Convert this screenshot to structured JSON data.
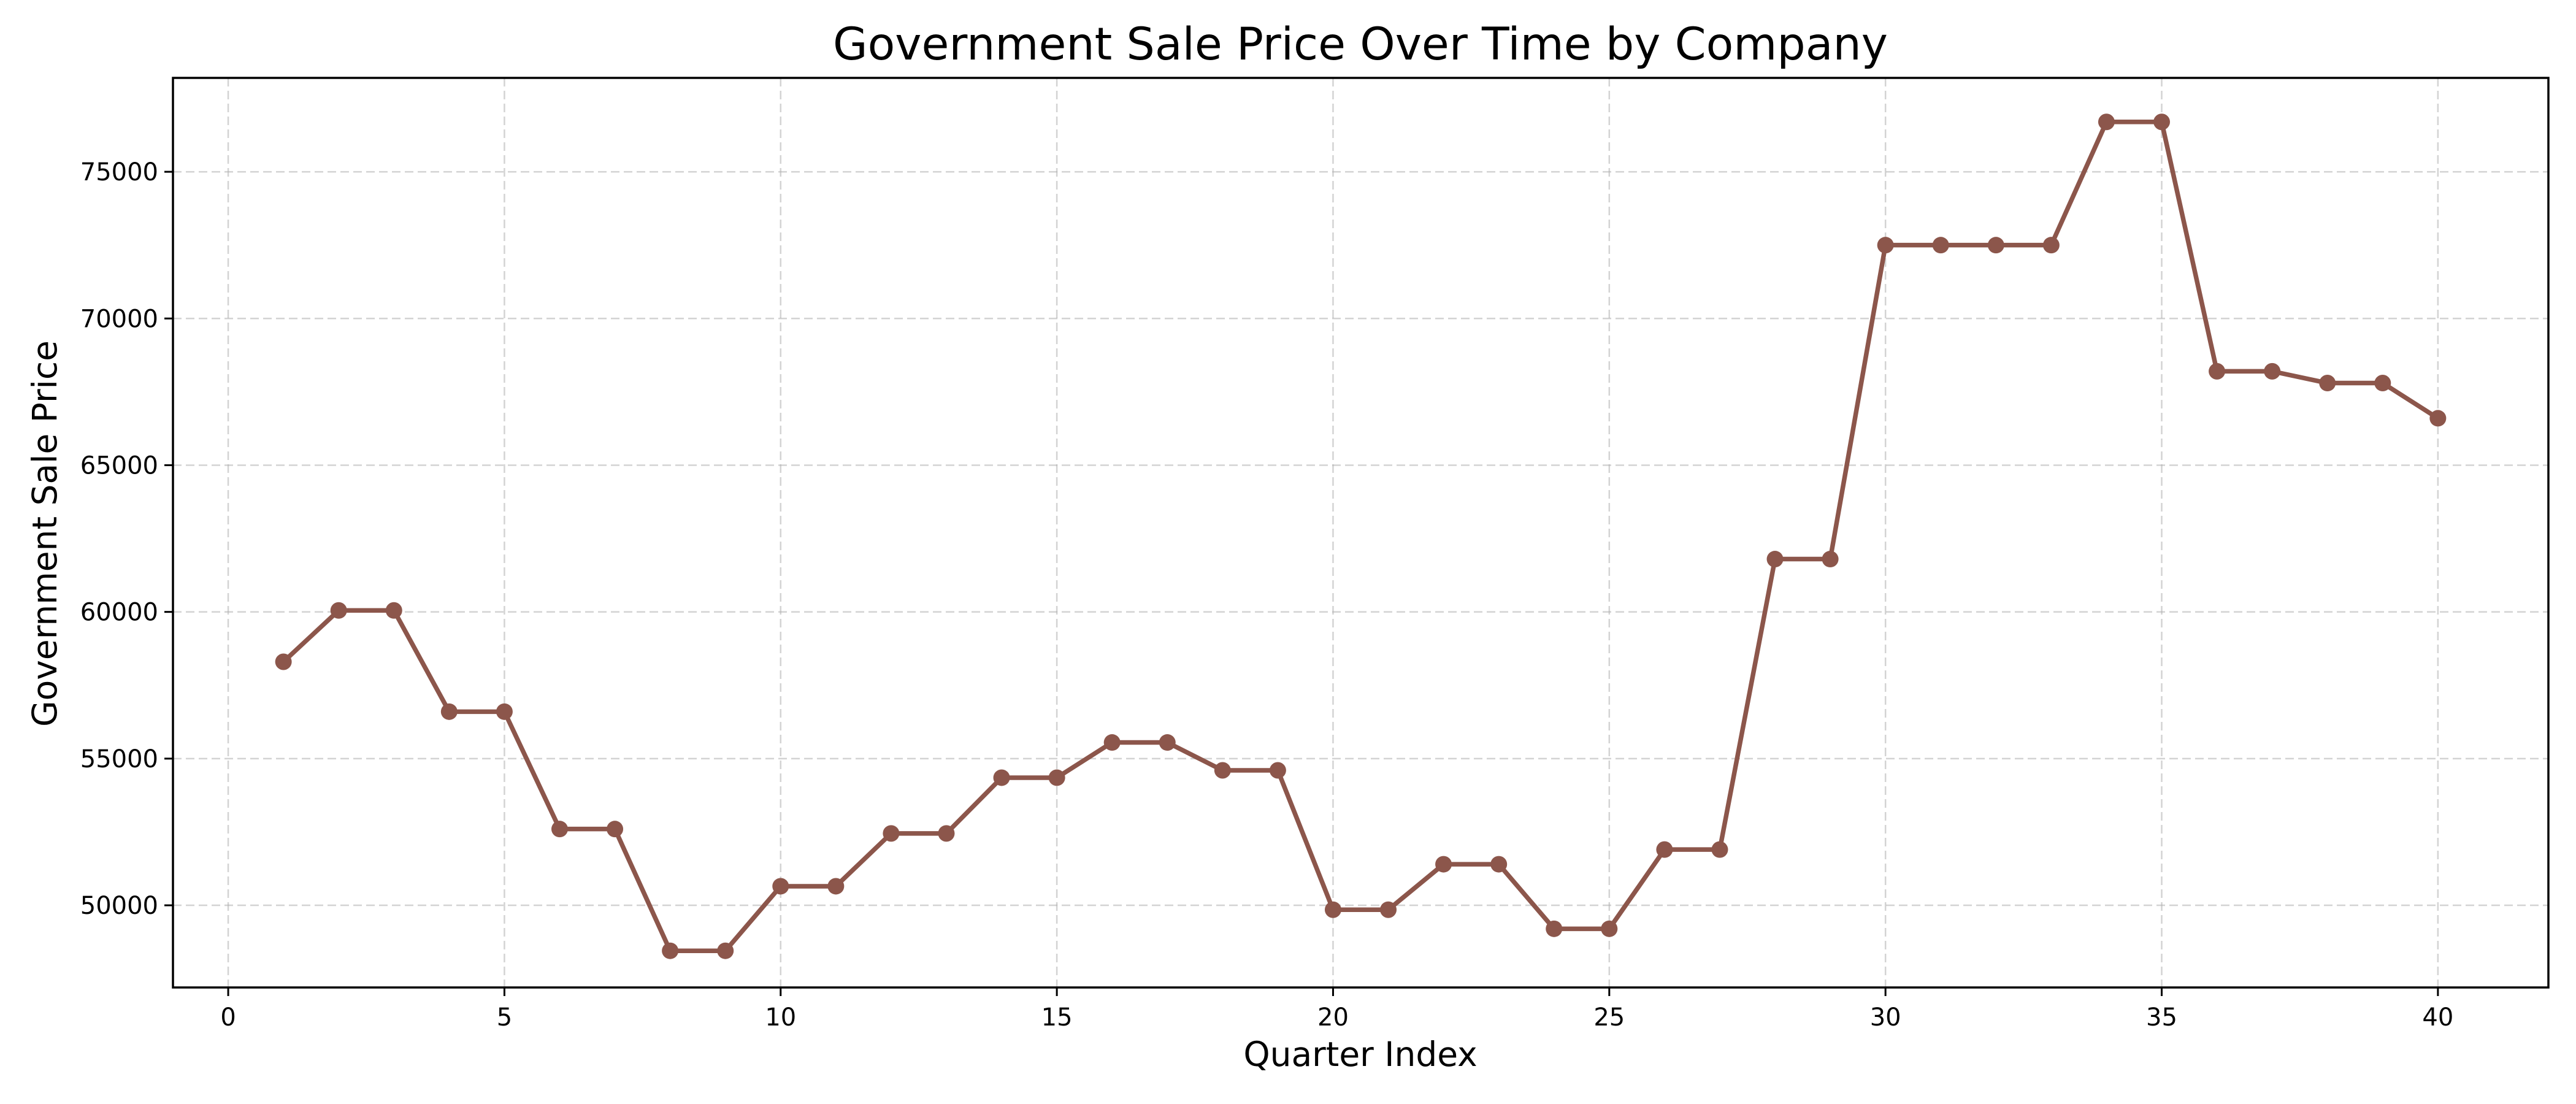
{
  "chart_data": {
    "type": "line",
    "title": "Government Sale Price Over Time by Company",
    "xlabel": "Quarter Index",
    "ylabel": "Government Sale Price",
    "xlim": [
      -1,
      42
    ],
    "ylim": [
      47200,
      78200
    ],
    "xticks": [
      0,
      5,
      10,
      15,
      20,
      25,
      30,
      35,
      40
    ],
    "yticks": [
      50000,
      55000,
      60000,
      65000,
      70000,
      75000
    ],
    "grid": true,
    "color": "#8c564b",
    "marker": "circle",
    "series": [
      {
        "x": [
          1,
          2,
          3,
          4,
          5,
          6,
          7,
          8,
          9,
          10,
          11,
          12,
          13,
          14,
          15,
          16,
          17,
          18,
          19,
          20,
          21,
          22,
          23,
          24,
          25,
          26,
          27,
          28,
          29,
          30,
          31,
          32,
          33,
          34,
          35,
          36,
          37,
          38,
          39,
          40
        ],
        "values": [
          58300,
          60050,
          60050,
          56600,
          56600,
          52600,
          52600,
          48450,
          48450,
          50650,
          50650,
          52450,
          52450,
          54350,
          54350,
          55550,
          55550,
          54600,
          54600,
          49850,
          49850,
          51400,
          51400,
          49200,
          49200,
          51900,
          51900,
          61800,
          61800,
          72500,
          72500,
          72500,
          72500,
          76700,
          76700,
          68200,
          68200,
          67800,
          67800,
          66600
        ]
      }
    ]
  }
}
